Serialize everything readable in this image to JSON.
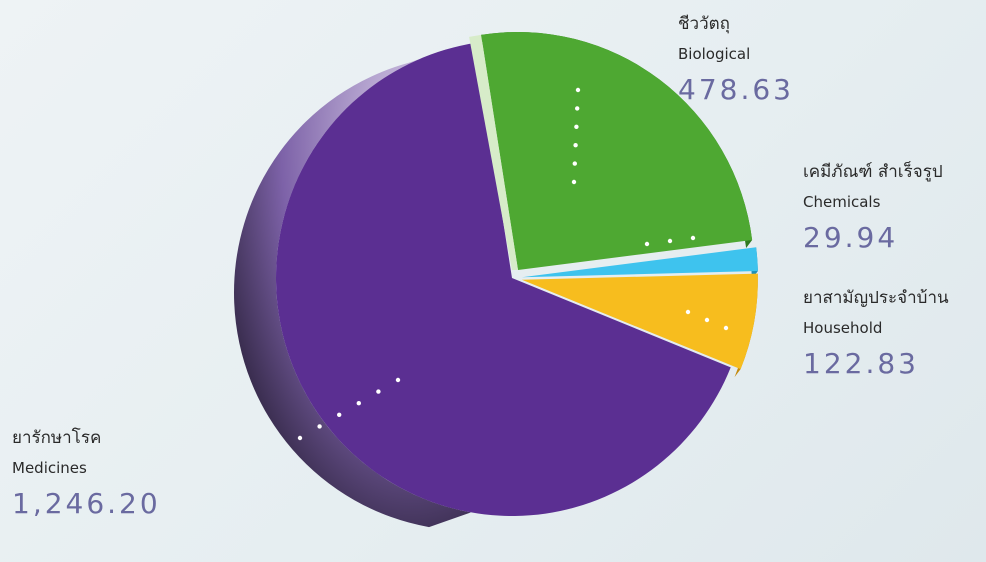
{
  "chart_data": {
    "type": "pie",
    "title": "",
    "slices": [
      {
        "th": "ชีววัตถุ",
        "en": "Biological",
        "value": 478.63,
        "value_label": "478.63",
        "color": "#4ea832"
      },
      {
        "th": "เคมีภัณฑ์ สำเร็จรูป",
        "en": "Chemicals",
        "value": 29.94,
        "value_label": "29.94",
        "color": "#3ec3ee"
      },
      {
        "th": "ยาสามัญประจำบ้าน",
        "en": "Household",
        "value": 122.83,
        "value_label": "122.83",
        "color": "#f7bd1e"
      },
      {
        "th": "ยารักษาโรค",
        "en": "Medicines",
        "value": 1246.2,
        "value_label": "1,246.20",
        "color": "#5b2f92"
      }
    ]
  }
}
